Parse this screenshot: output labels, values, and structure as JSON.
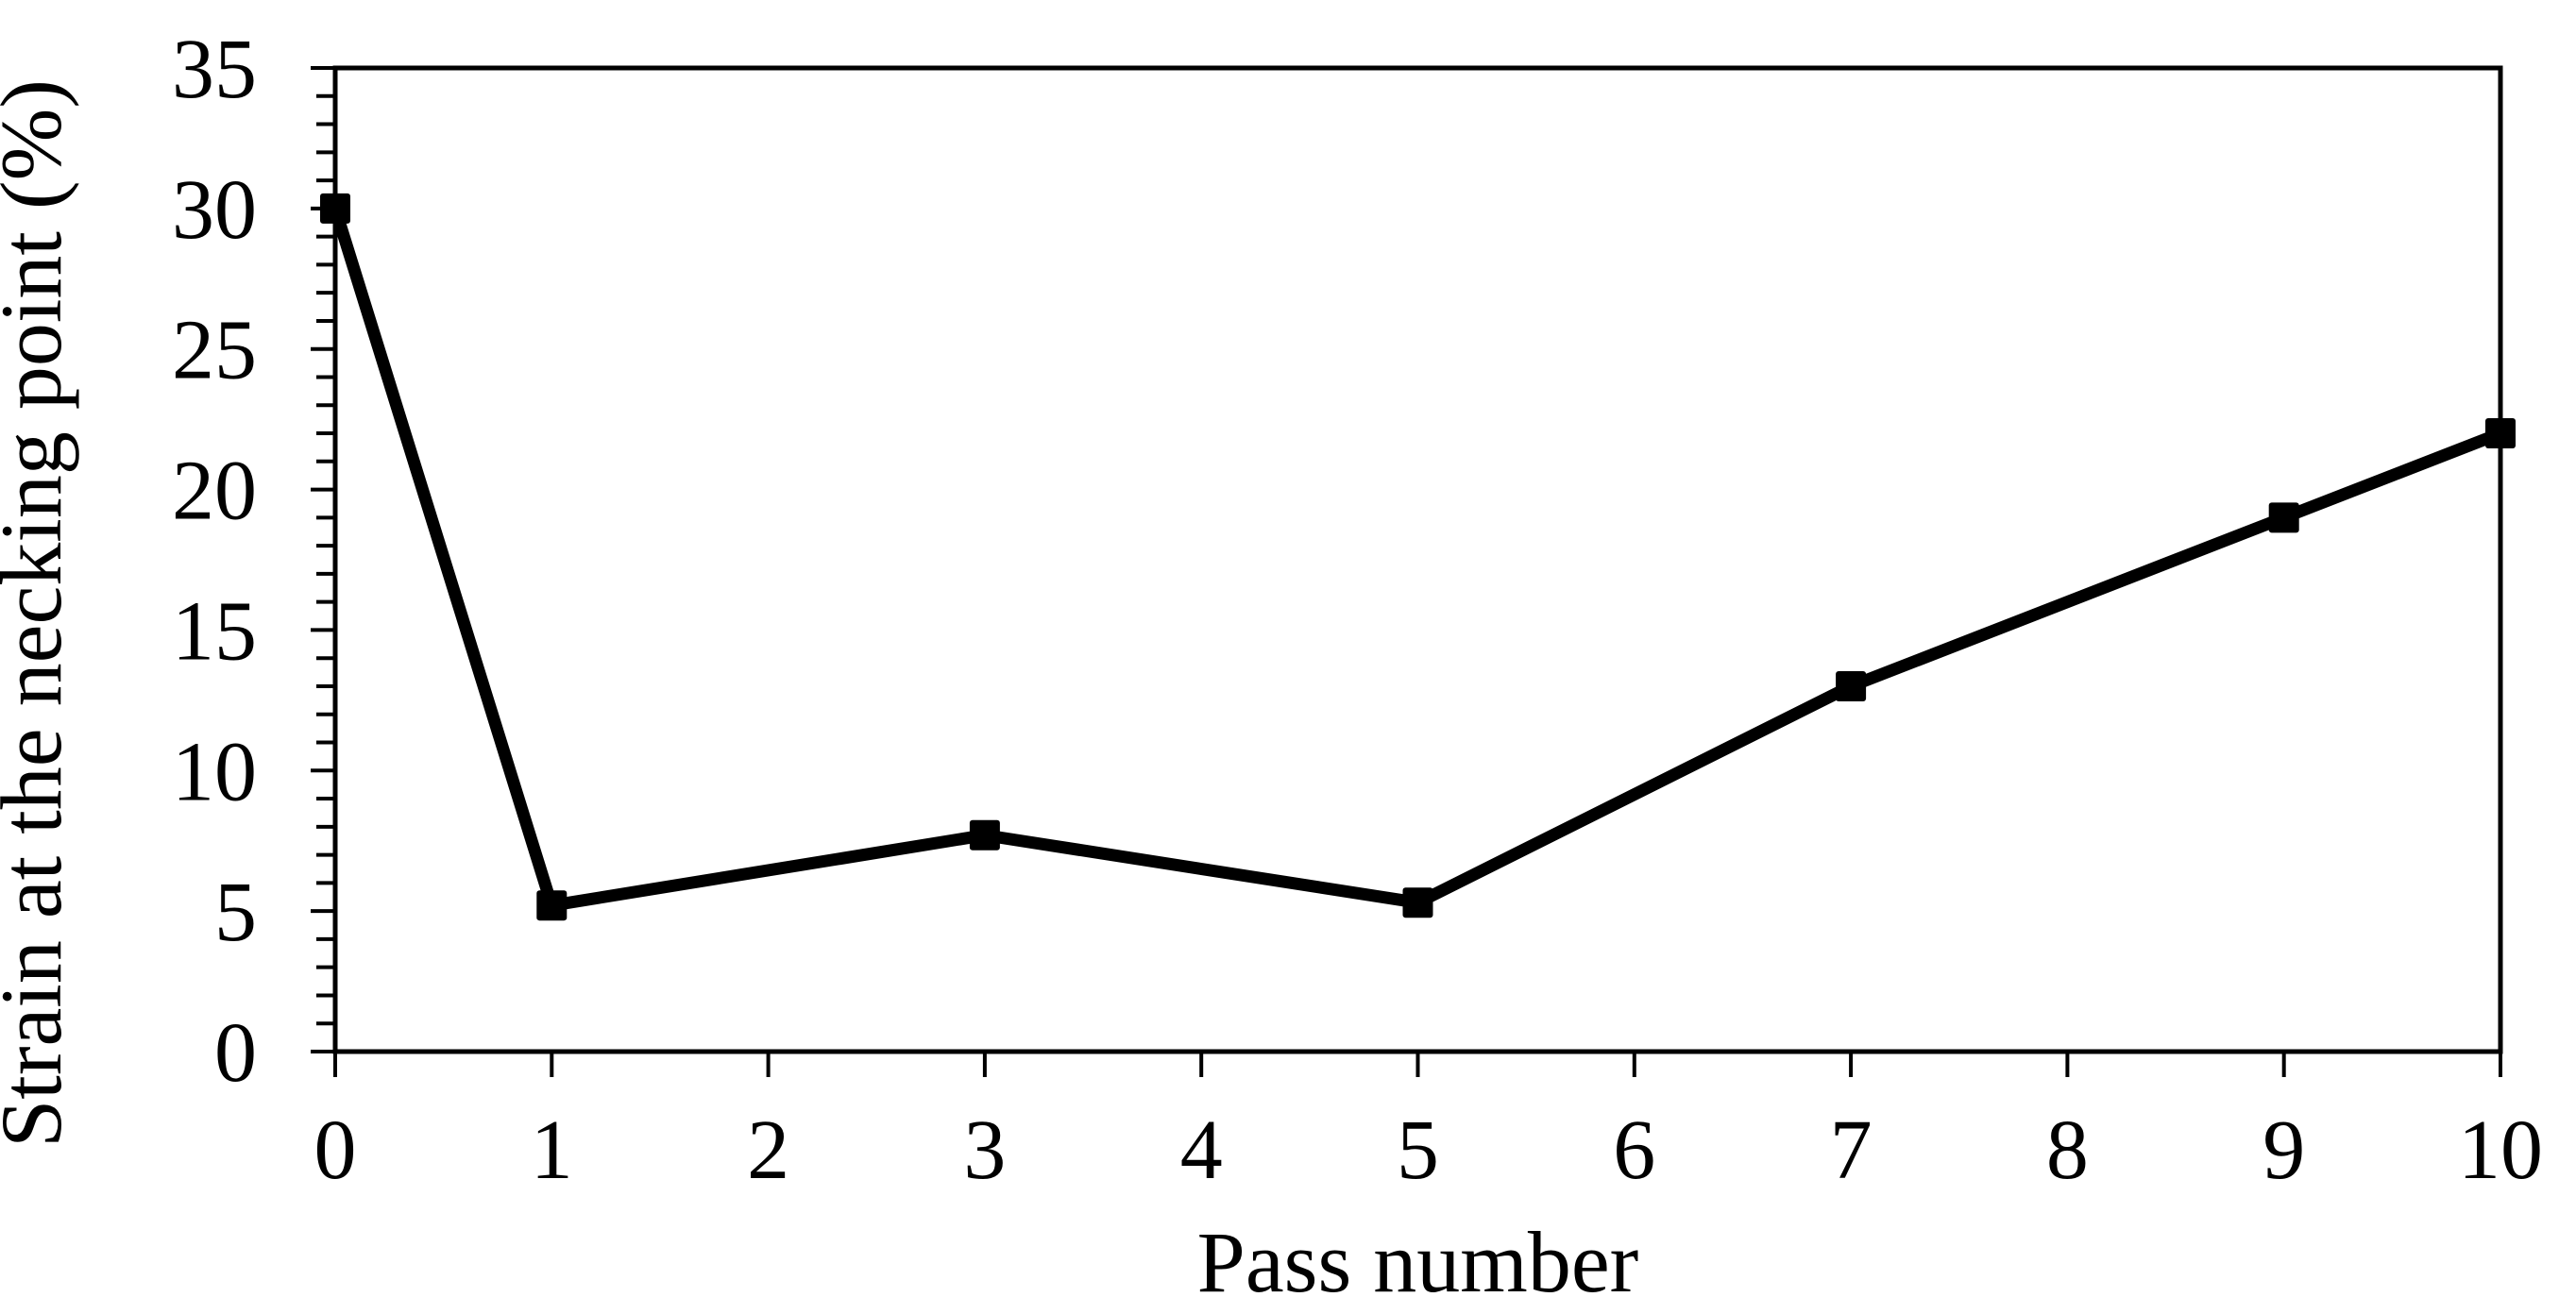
{
  "chart_data": {
    "type": "line",
    "title": "",
    "xlabel": "Pass number",
    "ylabel": "Strain at the necking point (%)",
    "x": [
      0,
      1,
      3,
      5,
      7,
      9,
      10
    ],
    "series": [
      {
        "name": "Strain at the necking point",
        "values": [
          30,
          5.2,
          7.7,
          5.3,
          13,
          19,
          22
        ]
      }
    ],
    "xlim": [
      0,
      10
    ],
    "ylim": [
      0,
      35
    ],
    "x_ticks": [
      0,
      1,
      2,
      3,
      4,
      5,
      6,
      7,
      8,
      9,
      10
    ],
    "y_major_ticks": [
      0,
      5,
      10,
      15,
      20,
      25,
      30,
      35
    ],
    "y_minor_step": 1,
    "grid": false,
    "frame": "box",
    "legend": "none",
    "marker": "square",
    "line_color": "#000000",
    "marker_color": "#000000",
    "axis_color": "#000000",
    "background": "#ffffff"
  }
}
